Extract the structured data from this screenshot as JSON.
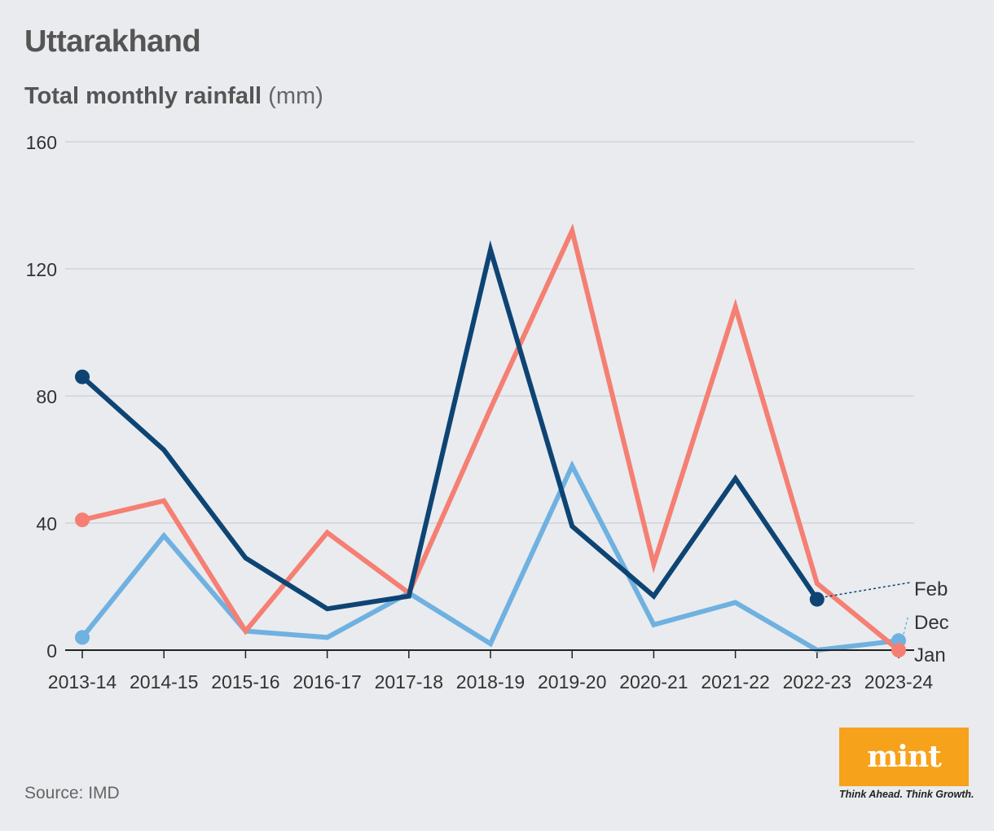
{
  "header": {
    "title": "Uttarakhand",
    "subtitle_strong": "Total monthly rainfall",
    "subtitle_unit": "(mm)"
  },
  "footer": {
    "source": "Source: IMD",
    "logo_text": "mint",
    "tagline": "Think Ahead. Think Growth."
  },
  "colors": {
    "Feb": "#0d4474",
    "Jan": "#f57f73",
    "Dec": "#6fb1e0",
    "grid": "#cfd3d9",
    "axis": "#222222",
    "logo": "#f7a21b"
  },
  "chart_data": {
    "type": "line",
    "title": "Total monthly rainfall",
    "ylabel": "(mm)",
    "xlabel": "",
    "ylim": [
      0,
      160
    ],
    "yticks": [
      0,
      40,
      80,
      120,
      160
    ],
    "grid": true,
    "categories": [
      "2013-14",
      "2014-15",
      "2015-16",
      "2016-17",
      "2017-18",
      "2018-19",
      "2019-20",
      "2020-21",
      "2021-22",
      "2022-23",
      "2023-24"
    ],
    "series": [
      {
        "name": "Dec",
        "values": [
          4,
          36,
          6,
          4,
          18,
          2,
          58,
          8,
          15,
          0,
          3
        ]
      },
      {
        "name": "Jan",
        "values": [
          41,
          47,
          6,
          37,
          18,
          76,
          132,
          27,
          108,
          21,
          0
        ]
      },
      {
        "name": "Feb",
        "values": [
          86,
          63,
          29,
          13,
          17,
          126,
          39,
          17,
          54,
          16,
          null
        ]
      }
    ]
  }
}
